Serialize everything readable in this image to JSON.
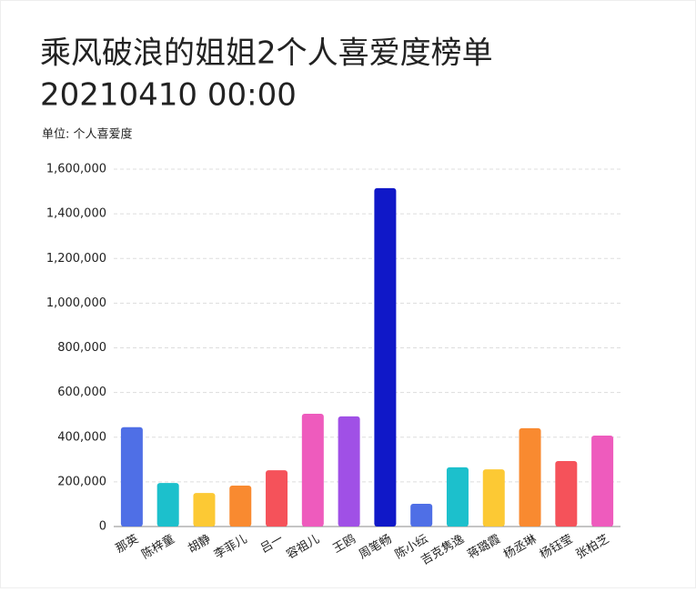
{
  "chart_data": {
    "type": "bar",
    "title": "乘风破浪的姐姐2个人喜爱度榜单",
    "subtitle": "20210410 00:00",
    "y_label": "单位: 个人喜爱度",
    "categories": [
      "那英",
      "陈梓童",
      "胡静",
      "李菲儿",
      "吕一",
      "容祖儿",
      "王鸥",
      "周笔畅",
      "陈小纭",
      "吉克隽逸",
      "蒋璐霞",
      "杨丞琳",
      "杨钰莹",
      "张柏芝"
    ],
    "values": [
      445000,
      195000,
      150000,
      183000,
      252000,
      505000,
      493000,
      1515000,
      102000,
      265000,
      256000,
      440000,
      293000,
      407000
    ],
    "colors": [
      "#4f6fe6",
      "#1cc0cc",
      "#fcc934",
      "#f98a30",
      "#f5525a",
      "#ee5bbd",
      "#a050e6",
      "#1018c8",
      "#4f6fe6",
      "#1cc0cc",
      "#fcc934",
      "#f98a30",
      "#f5525a",
      "#ee5bbd"
    ],
    "ylim": [
      0,
      1600000
    ],
    "yticks": [
      0,
      {
        "value": 200000,
        "label": "200,000"
      },
      {
        "value": 400000,
        "label": "400,000"
      },
      {
        "value": 600000,
        "label": "600,000"
      },
      {
        "value": 800000,
        "label": "800,000"
      },
      {
        "value": 1000000,
        "label": "1,000,000"
      },
      {
        "value": 1200000,
        "label": "1,200,000"
      },
      {
        "value": 1400000,
        "label": "1,400,000"
      },
      {
        "value": 1600000,
        "label": "1,600,000"
      }
    ],
    "grid": true
  }
}
